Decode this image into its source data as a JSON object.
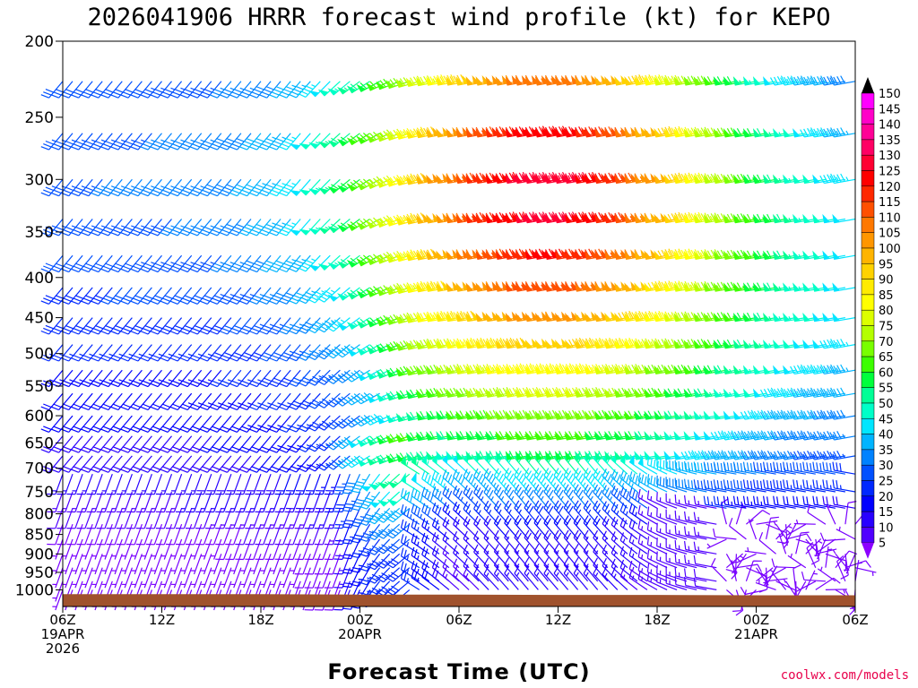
{
  "chart_data": {
    "type": "wind-barb-profile",
    "title": "2026041906 HRRR forecast wind profile (kt) for KEPO",
    "xlabel": "Forecast Time (UTC)",
    "ylabel": "",
    "units": "kt",
    "source": "coolwx.com/models",
    "x_ticks": [
      {
        "hour": 0,
        "lines": [
          "06Z",
          "19APR",
          "2026"
        ]
      },
      {
        "hour": 6,
        "lines": [
          "12Z"
        ]
      },
      {
        "hour": 12,
        "lines": [
          "18Z"
        ]
      },
      {
        "hour": 18,
        "lines": [
          "00Z",
          "20APR"
        ]
      },
      {
        "hour": 24,
        "lines": [
          "06Z"
        ]
      },
      {
        "hour": 30,
        "lines": [
          "12Z"
        ]
      },
      {
        "hour": 36,
        "lines": [
          "18Z"
        ]
      },
      {
        "hour": 42,
        "lines": [
          "00Z",
          "21APR"
        ]
      },
      {
        "hour": 48,
        "lines": [
          "06Z"
        ]
      }
    ],
    "xlim": [
      0,
      48
    ],
    "y_ticks": [
      200,
      250,
      300,
      350,
      400,
      450,
      500,
      550,
      600,
      650,
      700,
      750,
      800,
      850,
      900,
      950,
      1000
    ],
    "ylim": [
      200,
      1050
    ],
    "y_scale": "log-pressure",
    "levels": [
      225,
      262,
      300,
      337,
      375,
      412,
      450,
      487,
      525,
      562,
      600,
      637,
      675,
      712,
      750,
      787,
      825,
      862,
      900,
      937,
      975,
      1000
    ],
    "colorbar": {
      "labels": [
        150,
        145,
        140,
        135,
        130,
        125,
        120,
        115,
        110,
        105,
        100,
        95,
        90,
        85,
        80,
        75,
        70,
        65,
        60,
        55,
        50,
        45,
        40,
        35,
        30,
        25,
        20,
        15,
        10,
        5
      ],
      "colors": [
        "#ff00ff",
        "#ff00c8",
        "#ff0096",
        "#ff0064",
        "#ff0032",
        "#ff0000",
        "#ff2800",
        "#ff5000",
        "#ff7800",
        "#ff9600",
        "#ffb400",
        "#ffd200",
        "#ffeb00",
        "#ffff00",
        "#dcff00",
        "#b4ff00",
        "#78ff00",
        "#3cff00",
        "#00ff3c",
        "#00ff96",
        "#00ffc8",
        "#00e6ff",
        "#00b4ff",
        "#0082ff",
        "#0050ff",
        "#0028ff",
        "#0000ff",
        "#2800ff",
        "#5000ff",
        "#7800ff"
      ],
      "max_arrow_color": "#000000",
      "min_arrow_color": "#8c00ff"
    },
    "ground_color": "#a0522d",
    "surface_pressure_hpa": [
      1013,
      1013,
      1013,
      1014,
      1014,
      1015,
      1015,
      1016,
      1016,
      1016
    ],
    "surface_pressure_hours": [
      0,
      6,
      12,
      18,
      24,
      30,
      36,
      42,
      45,
      48
    ],
    "wind_field_description": {
      "upper_jet_max_kt": 130,
      "upper_jet_levels_hpa": [
        262,
        300,
        337
      ],
      "upper_jet_hours": [
        26,
        34
      ],
      "low_level_weak_region_hours": [
        40,
        48
      ],
      "low_level_weak_region_min_level_hpa": 800
    }
  }
}
